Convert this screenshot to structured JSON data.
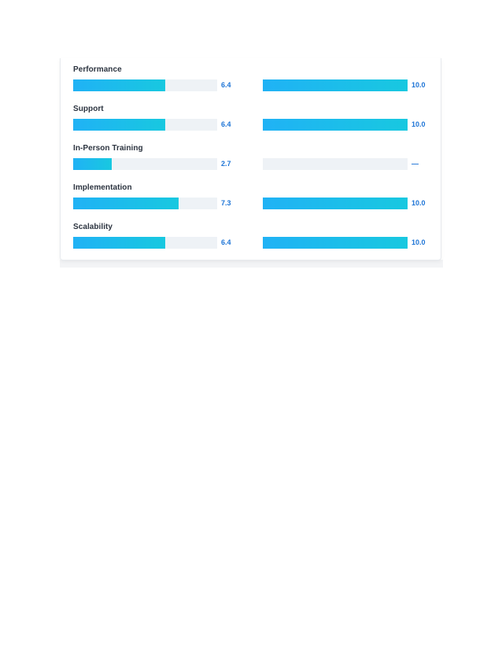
{
  "ratings": [
    {
      "label": "Performance",
      "left_value": "6.4",
      "left_score": 6.4,
      "right_value": "10.0",
      "right_score": 10.0
    },
    {
      "label": "Support",
      "left_value": "6.4",
      "left_score": 6.4,
      "right_value": "10.0",
      "right_score": 10.0
    },
    {
      "label": "In-Person Training",
      "left_value": "2.7",
      "left_score": 2.7,
      "right_value": "—",
      "right_score": 0
    },
    {
      "label": "Implementation",
      "left_value": "7.3",
      "left_score": 7.3,
      "right_value": "10.0",
      "right_score": 10.0
    },
    {
      "label": "Scalability",
      "left_value": "6.4",
      "left_score": 6.4,
      "right_value": "10.0",
      "right_score": 10.0
    }
  ],
  "scale_max": 10,
  "colors": {
    "bar_start": "#20b2f5",
    "bar_end": "#18c8e0",
    "track": "#eef2f6",
    "score_text": "#1d74d6",
    "label_text": "#2c3440"
  }
}
